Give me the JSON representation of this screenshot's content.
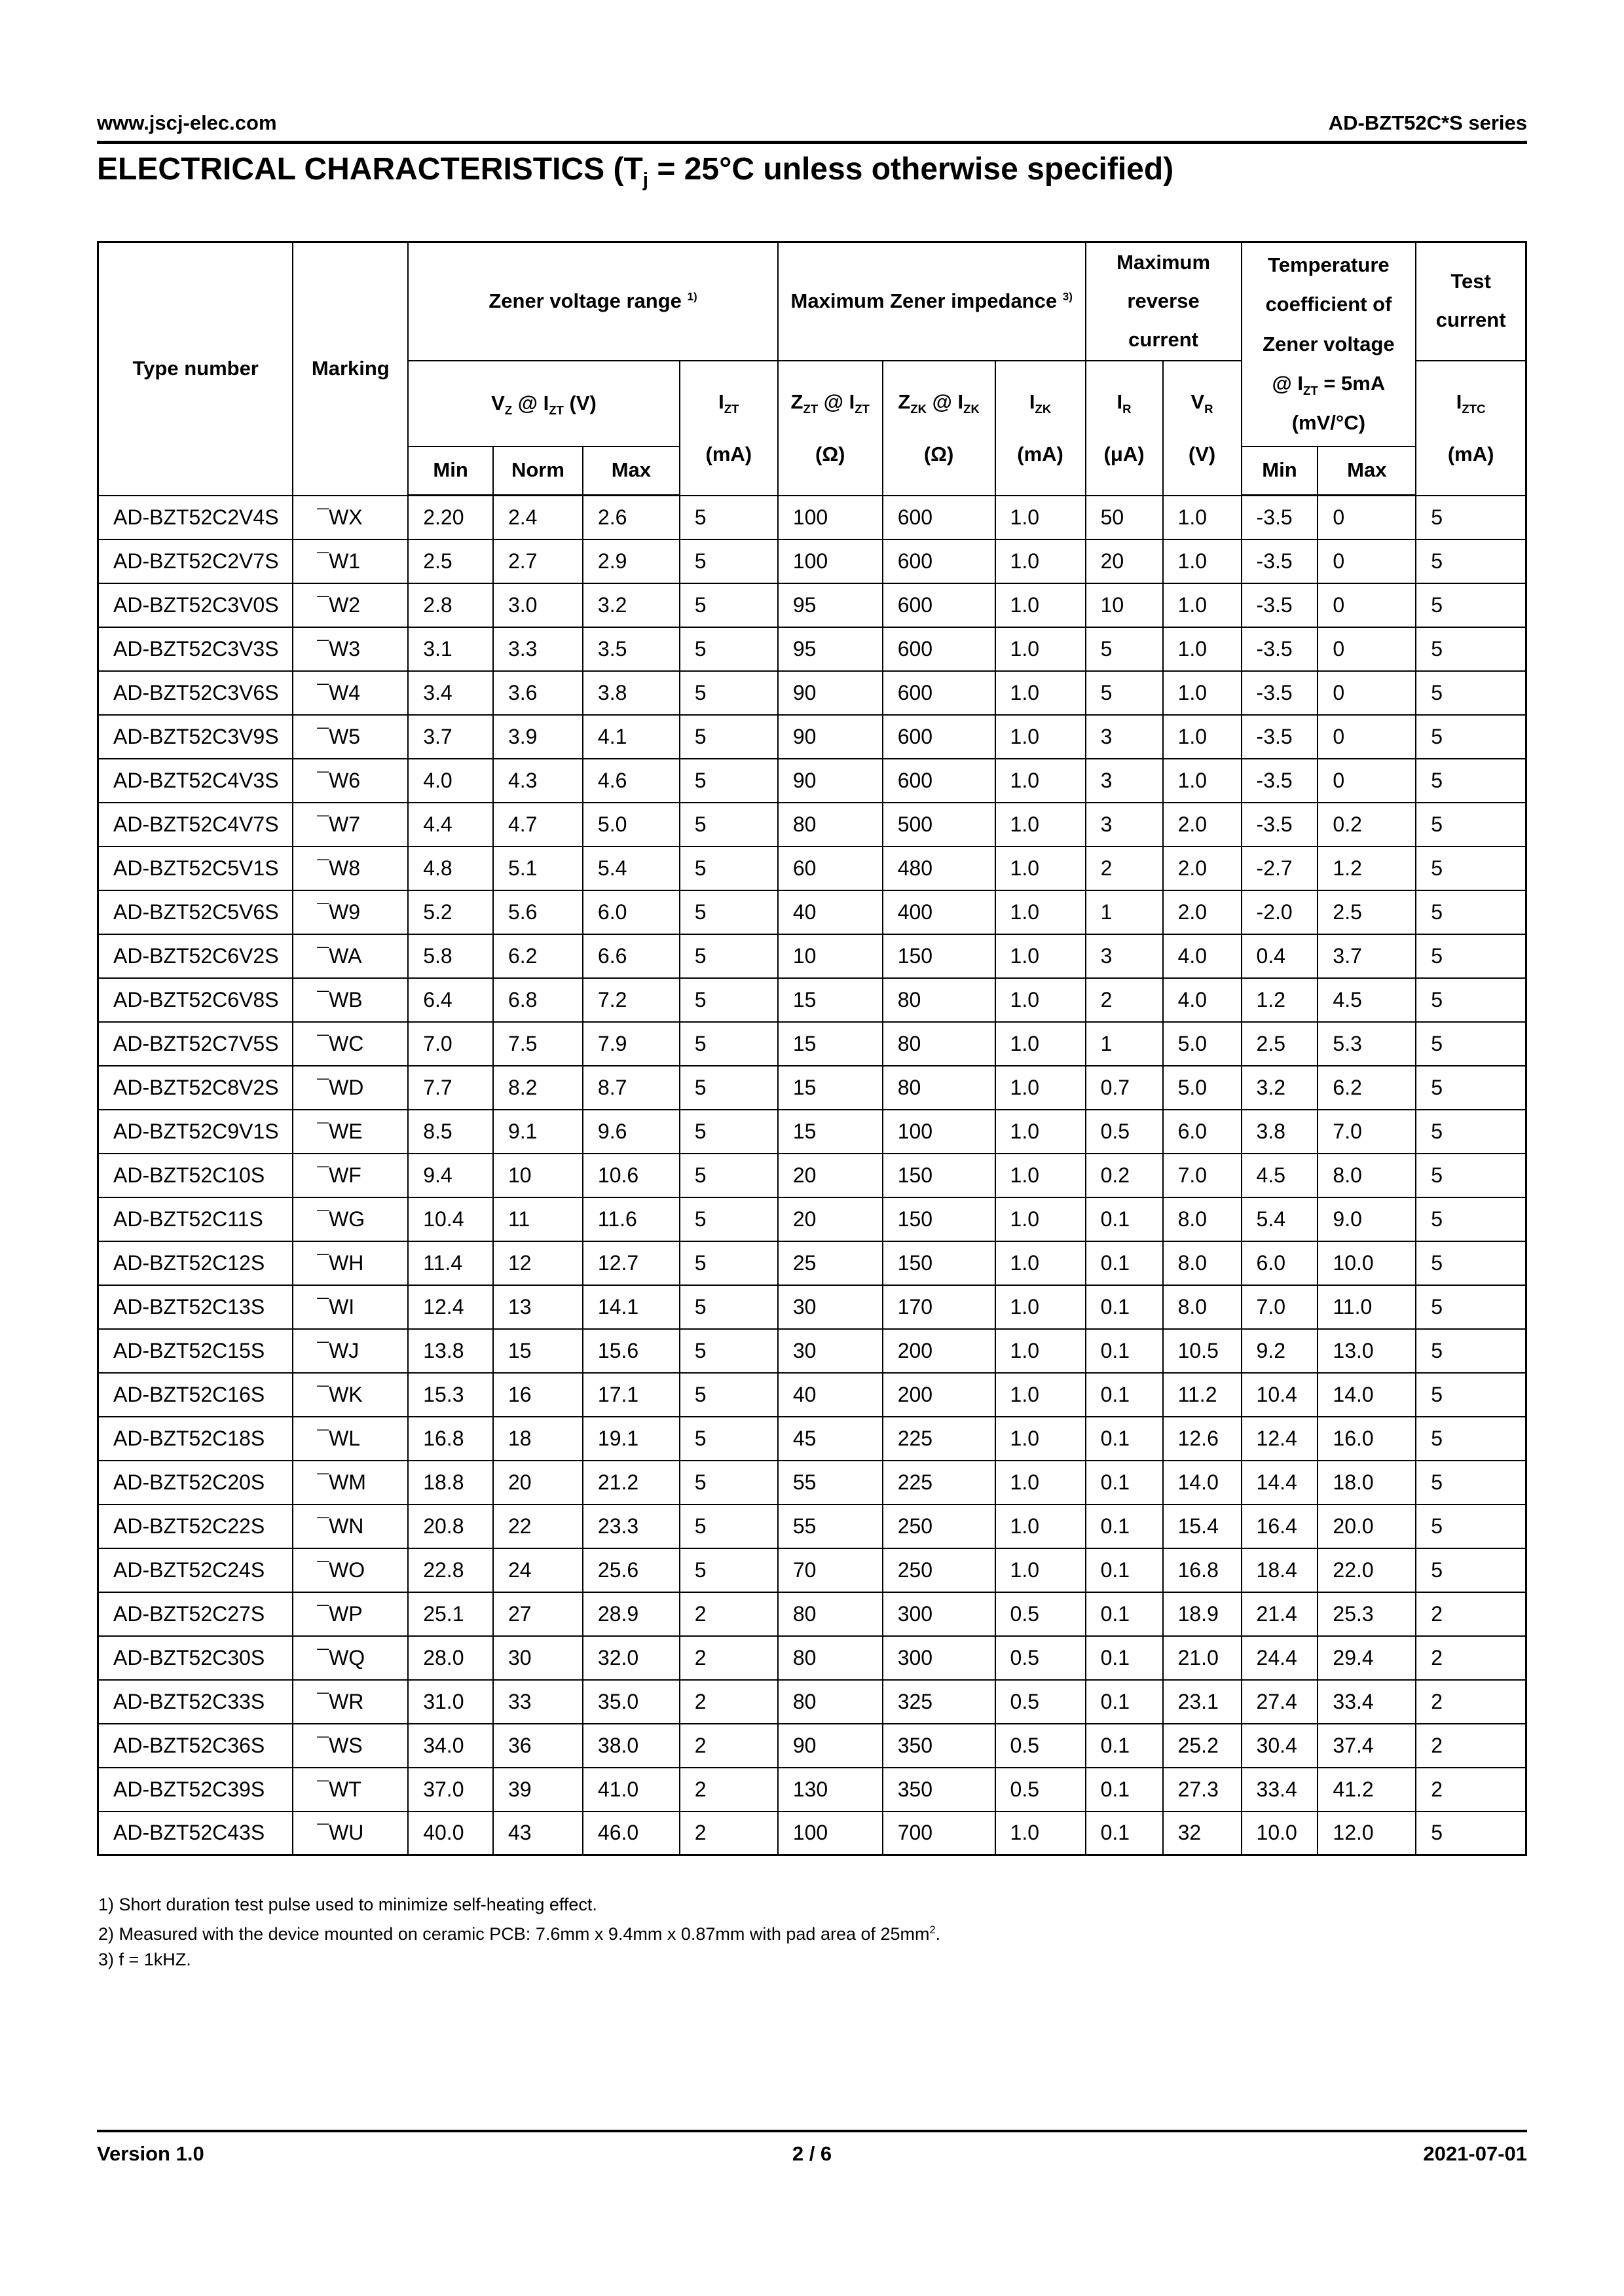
{
  "page_header": {
    "website": "www.jscj-elec.com",
    "series": "AD-BZT52C*S series"
  },
  "title_html": "ELECTRICAL CHARACTERISTICS (T<sub>j</sub> = 25°C unless otherwise specified)",
  "table": {
    "header": {
      "type_number": "Type number",
      "marking": "Marking",
      "zener_voltage_range_html": "Zener voltage range <sup>1)</sup>",
      "max_zener_impedance_html": "Maximum Zener impedance <sup>3)</sup>",
      "max_reverse_current_html": "Maximum<br>reverse<br>current",
      "temp_coefficient_html": "Temperature<br>coefficient of<br>Zener voltage<br>@ I<sub>ZT</sub> = 5mA<br>(mV/°C)",
      "test_current_html": "Test<br>current",
      "vz_html": "V<sub>Z</sub> @ I<sub>ZT</sub> (V)",
      "izt_html": "I<sub>ZT</sub><br>(mA)",
      "zzt_html": "Z<sub>ZT</sub> @ I<sub>ZT</sub><br>(Ω)",
      "zzk_html": "Z<sub>ZK</sub> @ I<sub>ZK</sub><br>(Ω)",
      "izk_html": "I<sub>ZK</sub><br>(mA)",
      "ir_html": "I<sub>R</sub><br>(μA)",
      "vr_html": "V<sub>R</sub><br>(V)",
      "min": "Min",
      "norm": "Norm",
      "max": "Max",
      "tc_min": "Min",
      "tc_max": "Max",
      "iztc_html": "I<sub>ZTC</sub><br>(mA)"
    },
    "rows": [
      [
        "AD-BZT52C2V4S",
        "¯WX",
        "2.20",
        "2.4",
        "2.6",
        "5",
        "100",
        "600",
        "1.0",
        "50",
        "1.0",
        "-3.5",
        "0",
        "5"
      ],
      [
        "AD-BZT52C2V7S",
        "¯W1",
        "2.5",
        "2.7",
        "2.9",
        "5",
        "100",
        "600",
        "1.0",
        "20",
        "1.0",
        "-3.5",
        "0",
        "5"
      ],
      [
        "AD-BZT52C3V0S",
        "¯W2",
        "2.8",
        "3.0",
        "3.2",
        "5",
        "95",
        "600",
        "1.0",
        "10",
        "1.0",
        "-3.5",
        "0",
        "5"
      ],
      [
        "AD-BZT52C3V3S",
        "¯W3",
        "3.1",
        "3.3",
        "3.5",
        "5",
        "95",
        "600",
        "1.0",
        "5",
        "1.0",
        "-3.5",
        "0",
        "5"
      ],
      [
        "AD-BZT52C3V6S",
        "¯W4",
        "3.4",
        "3.6",
        "3.8",
        "5",
        "90",
        "600",
        "1.0",
        "5",
        "1.0",
        "-3.5",
        "0",
        "5"
      ],
      [
        "AD-BZT52C3V9S",
        "¯W5",
        "3.7",
        "3.9",
        "4.1",
        "5",
        "90",
        "600",
        "1.0",
        "3",
        "1.0",
        "-3.5",
        "0",
        "5"
      ],
      [
        "AD-BZT52C4V3S",
        "¯W6",
        "4.0",
        "4.3",
        "4.6",
        "5",
        "90",
        "600",
        "1.0",
        "3",
        "1.0",
        "-3.5",
        "0",
        "5"
      ],
      [
        "AD-BZT52C4V7S",
        "¯W7",
        "4.4",
        "4.7",
        "5.0",
        "5",
        "80",
        "500",
        "1.0",
        "3",
        "2.0",
        "-3.5",
        "0.2",
        "5"
      ],
      [
        "AD-BZT52C5V1S",
        "¯W8",
        "4.8",
        "5.1",
        "5.4",
        "5",
        "60",
        "480",
        "1.0",
        "2",
        "2.0",
        "-2.7",
        "1.2",
        "5"
      ],
      [
        "AD-BZT52C5V6S",
        "¯W9",
        "5.2",
        "5.6",
        "6.0",
        "5",
        "40",
        "400",
        "1.0",
        "1",
        "2.0",
        "-2.0",
        "2.5",
        "5"
      ],
      [
        "AD-BZT52C6V2S",
        "¯WA",
        "5.8",
        "6.2",
        "6.6",
        "5",
        "10",
        "150",
        "1.0",
        "3",
        "4.0",
        "0.4",
        "3.7",
        "5"
      ],
      [
        "AD-BZT52C6V8S",
        "¯WB",
        "6.4",
        "6.8",
        "7.2",
        "5",
        "15",
        "80",
        "1.0",
        "2",
        "4.0",
        "1.2",
        "4.5",
        "5"
      ],
      [
        "AD-BZT52C7V5S",
        "¯WC",
        "7.0",
        "7.5",
        "7.9",
        "5",
        "15",
        "80",
        "1.0",
        "1",
        "5.0",
        "2.5",
        "5.3",
        "5"
      ],
      [
        "AD-BZT52C8V2S",
        "¯WD",
        "7.7",
        "8.2",
        "8.7",
        "5",
        "15",
        "80",
        "1.0",
        "0.7",
        "5.0",
        "3.2",
        "6.2",
        "5"
      ],
      [
        "AD-BZT52C9V1S",
        "¯WE",
        "8.5",
        "9.1",
        "9.6",
        "5",
        "15",
        "100",
        "1.0",
        "0.5",
        "6.0",
        "3.8",
        "7.0",
        "5"
      ],
      [
        "AD-BZT52C10S",
        "¯WF",
        "9.4",
        "10",
        "10.6",
        "5",
        "20",
        "150",
        "1.0",
        "0.2",
        "7.0",
        "4.5",
        "8.0",
        "5"
      ],
      [
        "AD-BZT52C11S",
        "¯WG",
        "10.4",
        "11",
        "11.6",
        "5",
        "20",
        "150",
        "1.0",
        "0.1",
        "8.0",
        "5.4",
        "9.0",
        "5"
      ],
      [
        "AD-BZT52C12S",
        "¯WH",
        "11.4",
        "12",
        "12.7",
        "5",
        "25",
        "150",
        "1.0",
        "0.1",
        "8.0",
        "6.0",
        "10.0",
        "5"
      ],
      [
        "AD-BZT52C13S",
        "¯WI",
        "12.4",
        "13",
        "14.1",
        "5",
        "30",
        "170",
        "1.0",
        "0.1",
        "8.0",
        "7.0",
        "11.0",
        "5"
      ],
      [
        "AD-BZT52C15S",
        "¯WJ",
        "13.8",
        "15",
        "15.6",
        "5",
        "30",
        "200",
        "1.0",
        "0.1",
        "10.5",
        "9.2",
        "13.0",
        "5"
      ],
      [
        "AD-BZT52C16S",
        "¯WK",
        "15.3",
        "16",
        "17.1",
        "5",
        "40",
        "200",
        "1.0",
        "0.1",
        "11.2",
        "10.4",
        "14.0",
        "5"
      ],
      [
        "AD-BZT52C18S",
        "¯WL",
        "16.8",
        "18",
        "19.1",
        "5",
        "45",
        "225",
        "1.0",
        "0.1",
        "12.6",
        "12.4",
        "16.0",
        "5"
      ],
      [
        "AD-BZT52C20S",
        "¯WM",
        "18.8",
        "20",
        "21.2",
        "5",
        "55",
        "225",
        "1.0",
        "0.1",
        "14.0",
        "14.4",
        "18.0",
        "5"
      ],
      [
        "AD-BZT52C22S",
        "¯WN",
        "20.8",
        "22",
        "23.3",
        "5",
        "55",
        "250",
        "1.0",
        "0.1",
        "15.4",
        "16.4",
        "20.0",
        "5"
      ],
      [
        "AD-BZT52C24S",
        "¯WO",
        "22.8",
        "24",
        "25.6",
        "5",
        "70",
        "250",
        "1.0",
        "0.1",
        "16.8",
        "18.4",
        "22.0",
        "5"
      ],
      [
        "AD-BZT52C27S",
        "¯WP",
        "25.1",
        "27",
        "28.9",
        "2",
        "80",
        "300",
        "0.5",
        "0.1",
        "18.9",
        "21.4",
        "25.3",
        "2"
      ],
      [
        "AD-BZT52C30S",
        "¯WQ",
        "28.0",
        "30",
        "32.0",
        "2",
        "80",
        "300",
        "0.5",
        "0.1",
        "21.0",
        "24.4",
        "29.4",
        "2"
      ],
      [
        "AD-BZT52C33S",
        "¯WR",
        "31.0",
        "33",
        "35.0",
        "2",
        "80",
        "325",
        "0.5",
        "0.1",
        "23.1",
        "27.4",
        "33.4",
        "2"
      ],
      [
        "AD-BZT52C36S",
        "¯WS",
        "34.0",
        "36",
        "38.0",
        "2",
        "90",
        "350",
        "0.5",
        "0.1",
        "25.2",
        "30.4",
        "37.4",
        "2"
      ],
      [
        "AD-BZT52C39S",
        "¯WT",
        "37.0",
        "39",
        "41.0",
        "2",
        "130",
        "350",
        "0.5",
        "0.1",
        "27.3",
        "33.4",
        "41.2",
        "2"
      ],
      [
        "AD-BZT52C43S",
        "¯WU",
        "40.0",
        "43",
        "46.0",
        "2",
        "100",
        "700",
        "1.0",
        "0.1",
        "32",
        "10.0",
        "12.0",
        "5"
      ]
    ]
  },
  "notes": [
    "1) Short duration test pulse used to minimize self-heating effect.",
    "2) Measured with the device mounted on ceramic PCB: 7.6mm x 9.4mm x 0.87mm with pad area of 25mm<sup>2</sup>.",
    "3) f = 1kHZ."
  ],
  "footer": {
    "version": "Version 1.0",
    "page": "2 / 6",
    "date": "2021-07-01"
  }
}
